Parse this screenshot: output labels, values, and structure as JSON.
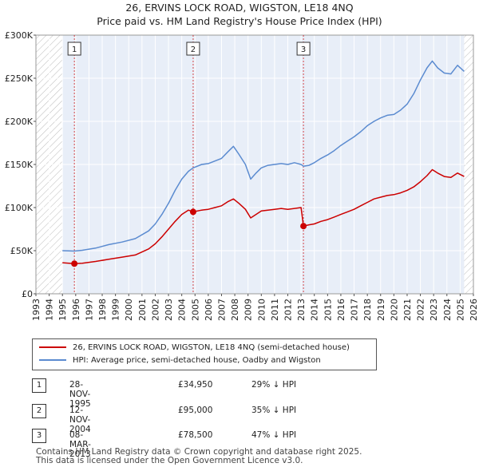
{
  "header": {
    "title": "26, ERVINS LOCK ROAD, WIGSTON, LE18 4NQ",
    "subtitle": "Price paid vs. HM Land Registry's House Price Index (HPI)"
  },
  "colors": {
    "property": "#cc0000",
    "hpi": "#5b8bd0",
    "band": "#e8eef8",
    "marker": "#cc0000"
  },
  "chart_data": {
    "type": "line",
    "xlim": [
      1993,
      2026
    ],
    "ylim": [
      0,
      300000
    ],
    "x_ticks": [
      "1993",
      "1994",
      "1995",
      "1996",
      "1997",
      "1998",
      "1999",
      "2000",
      "2001",
      "2002",
      "2003",
      "2004",
      "2005",
      "2006",
      "2007",
      "2008",
      "2009",
      "2010",
      "2011",
      "2012",
      "2013",
      "2014",
      "2015",
      "2016",
      "2017",
      "2018",
      "2019",
      "2020",
      "2021",
      "2022",
      "2023",
      "2024",
      "2025",
      "2026"
    ],
    "y_ticks": [
      {
        "value": 0,
        "label": "£0"
      },
      {
        "value": 50000,
        "label": "£50K"
      },
      {
        "value": 100000,
        "label": "£100K"
      },
      {
        "value": 150000,
        "label": "£150K"
      },
      {
        "value": 200000,
        "label": "£200K"
      },
      {
        "value": 250000,
        "label": "£250K"
      },
      {
        "value": 300000,
        "label": "£300K"
      }
    ],
    "data_range": [
      1995.0,
      2025.3
    ],
    "series": [
      {
        "name": "26, ERVINS LOCK ROAD, WIGSTON, LE18 4NQ (semi-detached house)",
        "color": "#cc0000",
        "points": [
          [
            1995.0,
            36000
          ],
          [
            1995.9,
            34950
          ],
          [
            1996.5,
            35500
          ],
          [
            1997.5,
            37500
          ],
          [
            1998.5,
            40000
          ],
          [
            1999.5,
            42500
          ],
          [
            2000.5,
            45000
          ],
          [
            2001.5,
            52000
          ],
          [
            2002.0,
            58000
          ],
          [
            2002.5,
            66000
          ],
          [
            2003.0,
            75000
          ],
          [
            2003.5,
            84000
          ],
          [
            2004.0,
            92000
          ],
          [
            2004.5,
            97000
          ],
          [
            2004.86,
            95000
          ],
          [
            2005.5,
            97000
          ],
          [
            2006.0,
            98000
          ],
          [
            2006.5,
            100000
          ],
          [
            2007.0,
            102000
          ],
          [
            2007.5,
            107000
          ],
          [
            2007.9,
            110000
          ],
          [
            2008.3,
            105000
          ],
          [
            2008.8,
            98000
          ],
          [
            2009.2,
            88000
          ],
          [
            2009.6,
            92000
          ],
          [
            2010.0,
            96000
          ],
          [
            2010.5,
            97000
          ],
          [
            2011.0,
            98000
          ],
          [
            2011.5,
            99000
          ],
          [
            2012.0,
            98000
          ],
          [
            2012.5,
            99000
          ],
          [
            2013.0,
            100000
          ],
          [
            2013.18,
            78500
          ],
          [
            2013.6,
            80000
          ],
          [
            2014.0,
            81000
          ],
          [
            2014.5,
            84000
          ],
          [
            2015.0,
            86000
          ],
          [
            2015.5,
            89000
          ],
          [
            2016.0,
            92000
          ],
          [
            2016.5,
            95000
          ],
          [
            2017.0,
            98000
          ],
          [
            2017.5,
            102000
          ],
          [
            2018.0,
            106000
          ],
          [
            2018.5,
            110000
          ],
          [
            2019.0,
            112000
          ],
          [
            2019.5,
            114000
          ],
          [
            2020.0,
            115000
          ],
          [
            2020.5,
            117000
          ],
          [
            2021.0,
            120000
          ],
          [
            2021.5,
            124000
          ],
          [
            2022.0,
            130000
          ],
          [
            2022.5,
            137000
          ],
          [
            2022.9,
            144000
          ],
          [
            2023.3,
            140000
          ],
          [
            2023.8,
            136000
          ],
          [
            2024.3,
            135000
          ],
          [
            2024.8,
            140000
          ],
          [
            2025.3,
            136000
          ]
        ]
      },
      {
        "name": "HPI: Average price, semi-detached house, Oadby and Wigston",
        "color": "#5b8bd0",
        "points": [
          [
            1995.0,
            50000
          ],
          [
            1995.9,
            49500
          ],
          [
            1996.5,
            50500
          ],
          [
            1997.5,
            53000
          ],
          [
            1998.5,
            57000
          ],
          [
            1999.5,
            60000
          ],
          [
            2000.5,
            64000
          ],
          [
            2001.5,
            73000
          ],
          [
            2002.0,
            81000
          ],
          [
            2002.5,
            92000
          ],
          [
            2003.0,
            105000
          ],
          [
            2003.5,
            120000
          ],
          [
            2004.0,
            133000
          ],
          [
            2004.5,
            142000
          ],
          [
            2004.86,
            146000
          ],
          [
            2005.5,
            150000
          ],
          [
            2006.0,
            151000
          ],
          [
            2006.5,
            154000
          ],
          [
            2007.0,
            157000
          ],
          [
            2007.5,
            165000
          ],
          [
            2007.9,
            171000
          ],
          [
            2008.3,
            162000
          ],
          [
            2008.8,
            150000
          ],
          [
            2009.2,
            133000
          ],
          [
            2009.6,
            140000
          ],
          [
            2010.0,
            146000
          ],
          [
            2010.5,
            149000
          ],
          [
            2011.0,
            150000
          ],
          [
            2011.5,
            151000
          ],
          [
            2012.0,
            150000
          ],
          [
            2012.5,
            152000
          ],
          [
            2013.0,
            150000
          ],
          [
            2013.18,
            148000
          ],
          [
            2013.6,
            149000
          ],
          [
            2014.0,
            152000
          ],
          [
            2014.5,
            157000
          ],
          [
            2015.0,
            161000
          ],
          [
            2015.5,
            166000
          ],
          [
            2016.0,
            172000
          ],
          [
            2016.5,
            177000
          ],
          [
            2017.0,
            182000
          ],
          [
            2017.5,
            188000
          ],
          [
            2018.0,
            195000
          ],
          [
            2018.5,
            200000
          ],
          [
            2019.0,
            204000
          ],
          [
            2019.5,
            207000
          ],
          [
            2020.0,
            208000
          ],
          [
            2020.5,
            213000
          ],
          [
            2021.0,
            220000
          ],
          [
            2021.5,
            232000
          ],
          [
            2022.0,
            248000
          ],
          [
            2022.5,
            262000
          ],
          [
            2022.9,
            270000
          ],
          [
            2023.3,
            262000
          ],
          [
            2023.8,
            256000
          ],
          [
            2024.3,
            255000
          ],
          [
            2024.8,
            265000
          ],
          [
            2025.3,
            258000
          ]
        ]
      }
    ],
    "transactions": [
      {
        "id": "1",
        "x": 1995.9,
        "price": 34950
      },
      {
        "id": "2",
        "x": 2004.86,
        "price": 95000
      },
      {
        "id": "3",
        "x": 2013.18,
        "price": 78500
      }
    ]
  },
  "legend": {
    "property_label": "26, ERVINS LOCK ROAD, WIGSTON, LE18 4NQ (semi-detached house)",
    "hpi_label": "HPI: Average price, semi-detached house, Oadby and Wigston"
  },
  "transactions_table": [
    {
      "id": "1",
      "date": "28-NOV-1995",
      "price": "£34,950",
      "hpi": "29% ↓ HPI"
    },
    {
      "id": "2",
      "date": "12-NOV-2004",
      "price": "£95,000",
      "hpi": "35% ↓ HPI"
    },
    {
      "id": "3",
      "date": "08-MAR-2013",
      "price": "£78,500",
      "hpi": "47% ↓ HPI"
    }
  ],
  "footer": {
    "line1": "Contains HM Land Registry data © Crown copyright and database right 2025.",
    "line2": "This data is licensed under the Open Government Licence v3.0."
  }
}
